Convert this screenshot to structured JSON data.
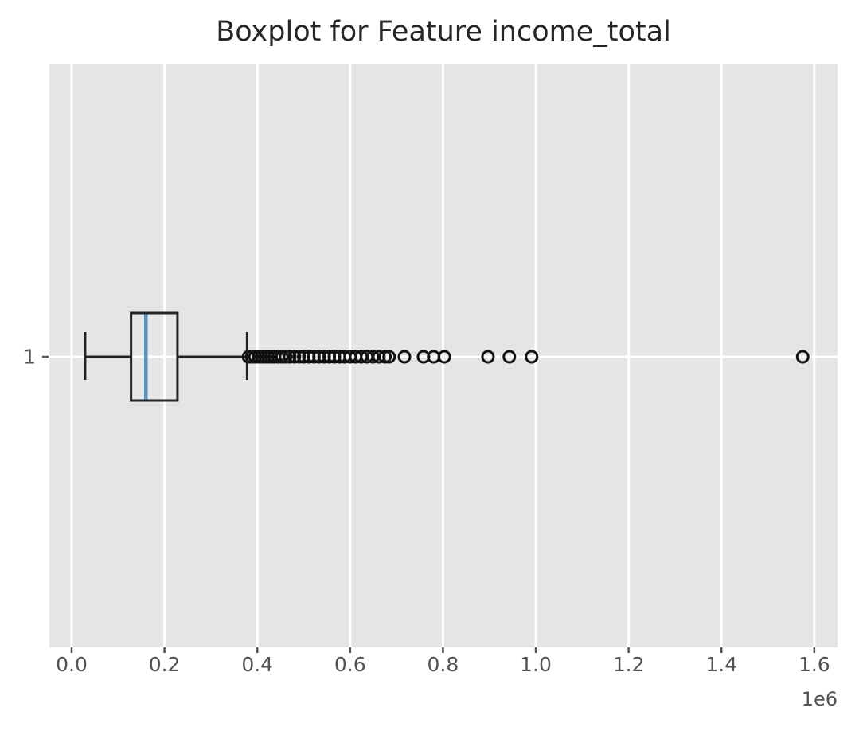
{
  "title": "Boxplot for Feature income_total",
  "y_axis": {
    "tick_label": "1"
  },
  "x_axis": {
    "tick_labels": [
      "0.0",
      "0.2",
      "0.4",
      "0.6",
      "0.8",
      "1.0",
      "1.2",
      "1.4",
      "1.6"
    ],
    "offset_label": "1e6"
  },
  "colors": {
    "figure_bg": "#ffffff",
    "plot_bg": "#e5e5e5",
    "grid": "#ffffff",
    "box_stroke": "#222222",
    "median": "#4f94c8",
    "outlier_stroke": "#111111",
    "tick_label": "#525252",
    "tick_mark": "#555555",
    "title": "#262626"
  },
  "chart_data": {
    "type": "boxplot",
    "orientation": "horizontal",
    "title": "Boxplot for Feature income_total",
    "categories": [
      "1"
    ],
    "xlabel": "",
    "ylabel": "",
    "x_unit_multiplier_label": "1e6",
    "values_scale": 1000000,
    "xlim": [
      -0.048,
      1.65
    ],
    "xticks": [
      0.0,
      0.2,
      0.4,
      0.6,
      0.8,
      1.0,
      1.2,
      1.4,
      1.6
    ],
    "xtick_labels": [
      "0.0",
      "0.2",
      "0.4",
      "0.6",
      "0.8",
      "1.0",
      "1.2",
      "1.4",
      "1.6"
    ],
    "grid": {
      "vertical_gridlines": true,
      "horizontal_gridline_at_category": true,
      "grid_color": "white",
      "plot_background": "light gray"
    },
    "legend": "none",
    "series": [
      {
        "name": "income_total",
        "category": "1",
        "whisker_low": 0.029,
        "q1": 0.128,
        "median": 0.16,
        "q3": 0.228,
        "whisker_high": 0.378,
        "outliers": [
          0.381,
          0.388,
          0.395,
          0.402,
          0.409,
          0.416,
          0.423,
          0.43,
          0.437,
          0.445,
          0.453,
          0.461,
          0.47,
          0.48,
          0.49,
          0.5,
          0.511,
          0.522,
          0.533,
          0.544,
          0.555,
          0.566,
          0.577,
          0.588,
          0.6,
          0.612,
          0.624,
          0.636,
          0.649,
          0.662,
          0.675,
          0.684,
          0.717,
          0.758,
          0.78,
          0.803,
          0.897,
          0.943,
          0.991,
          1.575
        ]
      }
    ]
  }
}
